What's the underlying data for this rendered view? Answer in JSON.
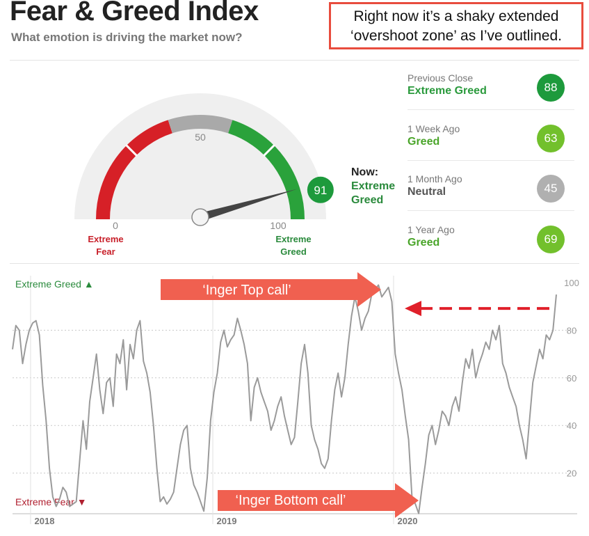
{
  "header": {
    "title": "Fear & Greed Index",
    "subtitle": "What emotion is driving the market now?"
  },
  "callout": {
    "line1": "Right now it’s a shaky extended",
    "line2": "‘overshoot zone’ as I’ve outlined."
  },
  "gauge": {
    "value": 91,
    "mid_label": "50",
    "min_label": "0",
    "max_label": "100",
    "fear_label": [
      "Extreme",
      "Fear"
    ],
    "greed_label": [
      "Extreme",
      "Greed"
    ],
    "now_label": "Now:",
    "now_state": "Extreme Greed",
    "colors": {
      "fear": "#d62027",
      "neutral": "#a9a9a9",
      "greed": "#2aa23b",
      "track": "#eeeeee",
      "needle": "#444444"
    }
  },
  "history": [
    {
      "period": "Previous Close",
      "state": "Extreme Greed",
      "value": "88",
      "color": "#1d9a3c",
      "state_color": "#2a9a3c"
    },
    {
      "period": "1 Week Ago",
      "state": "Greed",
      "value": "63",
      "color": "#72c02c",
      "state_color": "#4aa52a"
    },
    {
      "period": "1 Month Ago",
      "state": "Neutral",
      "value": "45",
      "color": "#b0b0b0",
      "state_color": "#555555"
    },
    {
      "period": "1 Year Ago",
      "state": "Greed",
      "value": "69",
      "color": "#72c02c",
      "state_color": "#4aa52a"
    }
  ],
  "chart_data": {
    "type": "line",
    "top_label": "Extreme Greed ▲",
    "bottom_label": "Extreme Fear ▼",
    "x_ticks": [
      "2018",
      "2019",
      "2020"
    ],
    "y_ticks": [
      20,
      40,
      60,
      80,
      100
    ],
    "ylim": [
      0,
      100
    ],
    "grid": true,
    "series": [
      {
        "values": [
          72,
          82,
          80,
          66,
          74,
          80,
          83,
          84,
          78,
          57,
          42,
          22,
          10,
          6,
          9,
          14,
          12,
          6,
          7,
          8,
          25,
          42,
          30,
          50,
          60,
          70,
          55,
          45,
          58,
          60,
          48,
          70,
          66,
          76,
          55,
          74,
          68,
          80,
          84,
          67,
          62,
          54,
          40,
          22,
          8,
          10,
          7,
          9,
          12,
          22,
          32,
          38,
          40,
          22,
          15,
          12,
          8,
          4,
          18,
          42,
          54,
          62,
          75,
          80,
          73,
          76,
          78,
          85,
          80,
          74,
          66,
          42,
          56,
          60,
          54,
          50,
          46,
          38,
          42,
          48,
          52,
          44,
          38,
          32,
          35,
          50,
          66,
          74,
          62,
          40,
          34,
          30,
          24,
          22,
          26,
          42,
          55,
          62,
          52,
          60,
          74,
          86,
          94,
          88,
          80,
          85,
          88,
          95,
          97,
          99,
          94,
          96,
          98,
          92,
          70,
          62,
          55,
          44,
          34,
          10,
          7,
          3,
          14,
          24,
          36,
          40,
          32,
          38,
          46,
          44,
          40,
          48,
          52,
          46,
          58,
          68,
          64,
          72,
          60,
          66,
          70,
          75,
          72,
          80,
          76,
          82,
          66,
          62,
          56,
          52,
          48,
          40,
          34,
          26,
          42,
          58,
          65,
          72,
          68,
          78,
          76,
          80,
          95
        ]
      }
    ]
  },
  "annotations": {
    "top_call": "‘Inger Top call’",
    "bottom_call": "‘Inger Bottom call’",
    "arrow_color": "#f06050",
    "dash_color": "#e0202a"
  }
}
